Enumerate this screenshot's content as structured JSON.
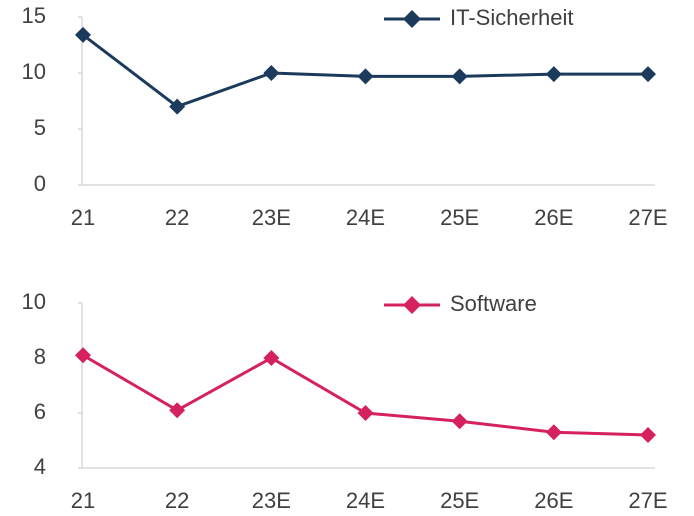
{
  "chart_data": [
    {
      "type": "line",
      "categories": [
        "21",
        "22",
        "23E",
        "24E",
        "25E",
        "26E",
        "27E"
      ],
      "series": [
        {
          "name": "IT-Sicherheit",
          "color": "#1b3a5c",
          "values": [
            13.4,
            7.0,
            10.0,
            9.7,
            9.7,
            9.9,
            9.9
          ]
        }
      ],
      "ylim": [
        0,
        15
      ],
      "yticks": [
        0,
        5,
        10,
        15
      ],
      "legend": "top-right"
    },
    {
      "type": "line",
      "categories": [
        "21",
        "22",
        "23E",
        "24E",
        "25E",
        "26E",
        "27E"
      ],
      "series": [
        {
          "name": "Software",
          "color": "#d6215f",
          "values": [
            8.1,
            6.1,
            8.0,
            6.0,
            5.7,
            5.3,
            5.2
          ]
        }
      ],
      "ylim": [
        4,
        10
      ],
      "yticks": [
        4,
        6,
        8,
        10
      ],
      "legend": "top-right"
    }
  ]
}
